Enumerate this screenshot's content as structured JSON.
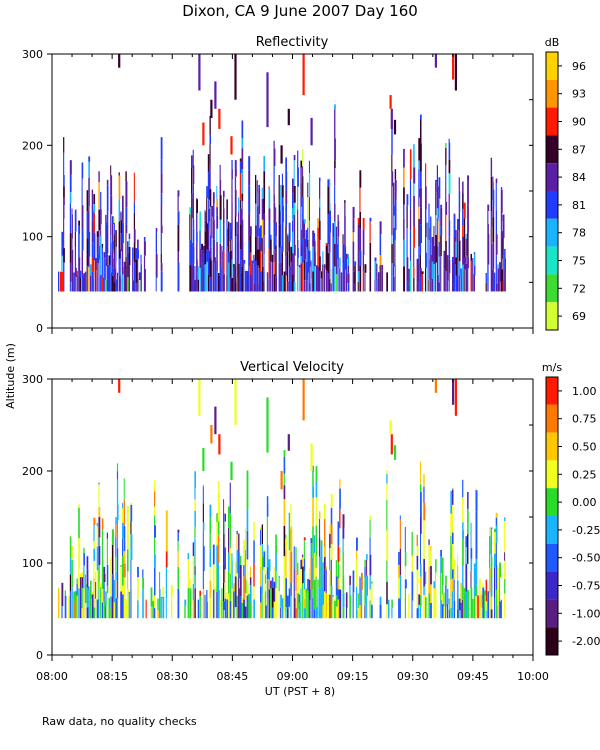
{
  "header": {
    "title": "Dixon, CA   9 June 2007   Day 160",
    "footnote": "Raw data, no quality checks"
  },
  "axes": {
    "ylabel": "Altitude (m)",
    "xlabel": "UT  (PST + 8)",
    "x_ticks": [
      "08:00",
      "08:15",
      "08:30",
      "08:45",
      "09:00",
      "09:15",
      "09:30",
      "09:45",
      "10:00"
    ],
    "x_range_minutes": [
      0,
      120
    ],
    "y_ticks": [
      0,
      100,
      200,
      300
    ],
    "y_range": [
      0,
      300
    ]
  },
  "chart_data": [
    {
      "type": "heatmap",
      "title": "Reflectivity",
      "colorbar": {
        "unit": "dB",
        "labels": [
          "96",
          "93",
          "90",
          "87",
          "84",
          "81",
          "78",
          "75",
          "72",
          "69"
        ],
        "colors": [
          "#ffd200",
          "#ff9600",
          "#ff1a00",
          "#35002a",
          "#5a1fa6",
          "#1f3cff",
          "#19b4ff",
          "#19e6c8",
          "#3cdc32",
          "#d2ff32"
        ]
      },
      "x_range_minutes": [
        0,
        120
      ],
      "y_range": [
        0,
        300
      ],
      "data_altitude_range": [
        40,
        300
      ]
    },
    {
      "type": "heatmap",
      "title": "Vertical Velocity",
      "colorbar": {
        "unit": "m/s",
        "labels": [
          "1.00",
          "0.75",
          "0.50",
          "0.25",
          "0.00",
          "-0.25",
          "-0.50",
          "-0.75",
          "-1.00",
          "-2.00"
        ],
        "colors": [
          "#ff1a00",
          "#ff7800",
          "#ffc800",
          "#f0ff1e",
          "#28dc28",
          "#19b4ff",
          "#1e5aff",
          "#3c28c8",
          "#5a1e82",
          "#2d0019"
        ]
      },
      "x_range_minutes": [
        0,
        120
      ],
      "y_range": [
        0,
        300
      ],
      "data_altitude_range": [
        40,
        300
      ]
    }
  ]
}
